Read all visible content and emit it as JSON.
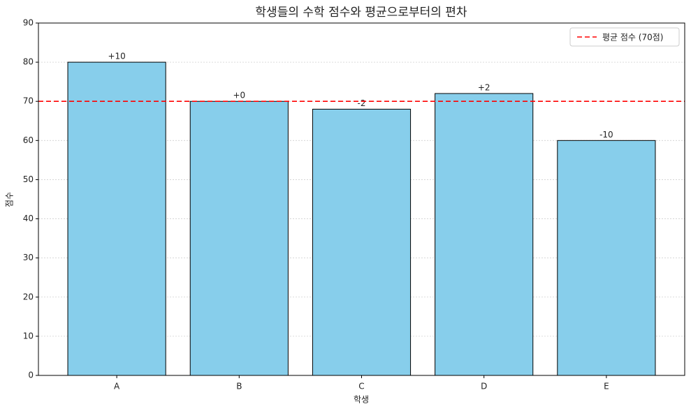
{
  "chart_data": {
    "type": "bar",
    "title": "학생들의 수학 점수와 평균으로부터의 편차",
    "x_label": "학생",
    "y_label": "점수",
    "categories": [
      "A",
      "B",
      "C",
      "D",
      "E"
    ],
    "values": [
      80,
      70,
      68,
      72,
      60
    ],
    "color": "#87ceeb",
    "edge_color": "#000000",
    "deviations": {
      "values": [
        10,
        0,
        -2,
        2,
        -10
      ],
      "value_labels": [
        "+10",
        "+0",
        "-2",
        "+2",
        "-10"
      ]
    },
    "reference_line": {
      "value": 70,
      "label": "평균 점수 (70점)",
      "color": "#ff0000",
      "style": "dashed"
    },
    "ylim": [
      0,
      90
    ],
    "yticks": [
      0,
      10,
      20,
      30,
      40,
      50,
      60,
      70,
      80,
      90
    ],
    "grid": true,
    "legend": "upper right"
  }
}
